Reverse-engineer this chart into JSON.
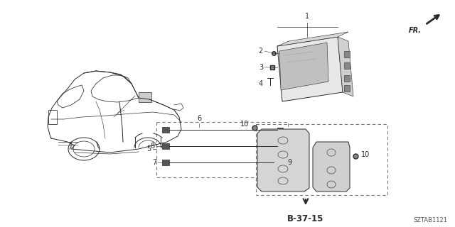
{
  "bg_color": "#ffffff",
  "line_color": "#2a2a2a",
  "diagram_code": "SZTAB1121",
  "fr_label": "FR.",
  "b_ref": "B-37-15",
  "fig_w": 6.4,
  "fig_h": 3.2,
  "dpi": 100
}
